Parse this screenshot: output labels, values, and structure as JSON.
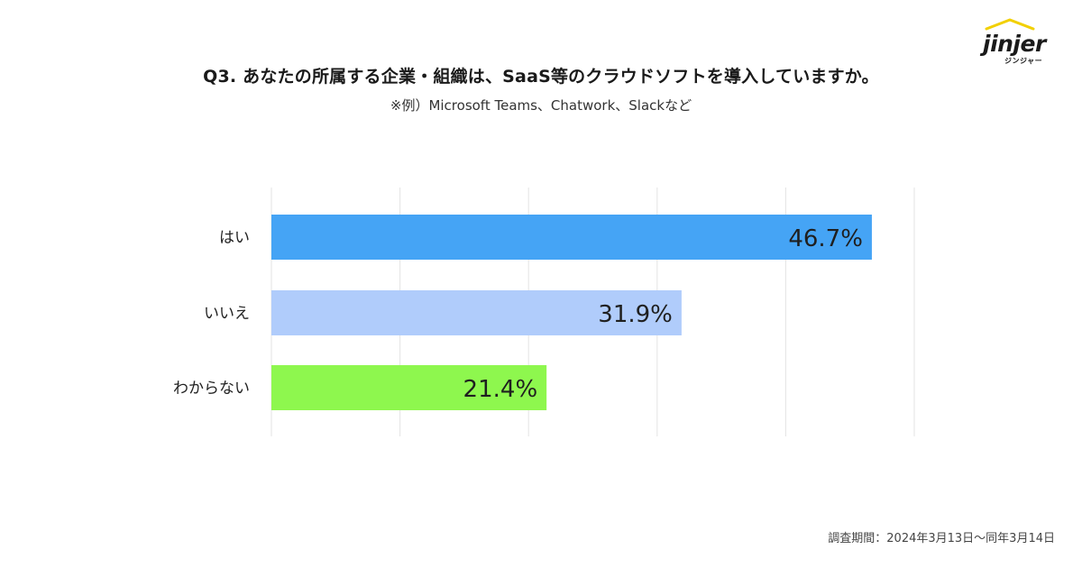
{
  "brand": {
    "logo_text": "jinjer",
    "logo_sub": "ジンジャー"
  },
  "footer": {
    "survey_period": "調査期間：2024年3月13日～同年3月14日"
  },
  "chart_data": {
    "type": "bar",
    "orientation": "horizontal",
    "title": "Q3. あなたの所属する企業・組織は、SaaS等のクラウドソフトを導入していますか。",
    "subtitle": "※例）Microsoft Teams、Chatwork、Slackなど",
    "categories": [
      "はい",
      "いいえ",
      "わからない"
    ],
    "values": [
      46.7,
      31.9,
      21.4
    ],
    "value_labels": [
      "46.7%",
      "31.9%",
      "21.4%"
    ],
    "colors": [
      "#45a4f5",
      "#b0ccfb",
      "#8ef74e"
    ],
    "xlim": [
      0,
      50
    ],
    "grid": true,
    "legend": "none"
  }
}
